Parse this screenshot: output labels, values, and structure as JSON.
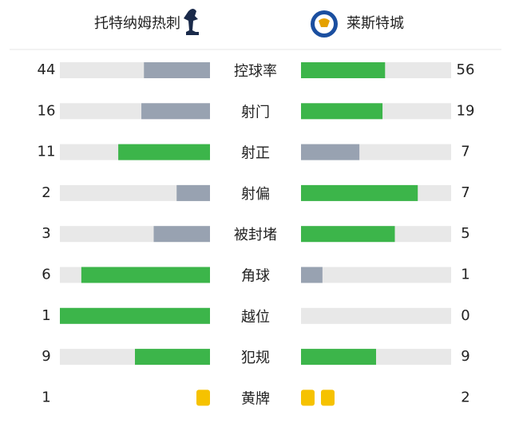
{
  "home": {
    "name": "托特纳姆热刺"
  },
  "away": {
    "name": "莱斯特城"
  },
  "colors": {
    "lead": "#3cb54a",
    "trail": "#98a2b1",
    "track": "#e8e8e8",
    "card": "#f6c200"
  },
  "stats": [
    {
      "label": "控球率",
      "home": 44,
      "away": 56
    },
    {
      "label": "射门",
      "home": 16,
      "away": 19
    },
    {
      "label": "射正",
      "home": 11,
      "away": 7
    },
    {
      "label": "射偏",
      "home": 2,
      "away": 7
    },
    {
      "label": "被封堵",
      "home": 3,
      "away": 5
    },
    {
      "label": "角球",
      "home": 6,
      "away": 1
    },
    {
      "label": "越位",
      "home": 1,
      "away": 0
    },
    {
      "label": "犯规",
      "home": 9,
      "away": 9
    }
  ],
  "cards": {
    "label": "黄牌",
    "home": 1,
    "away": 2
  }
}
